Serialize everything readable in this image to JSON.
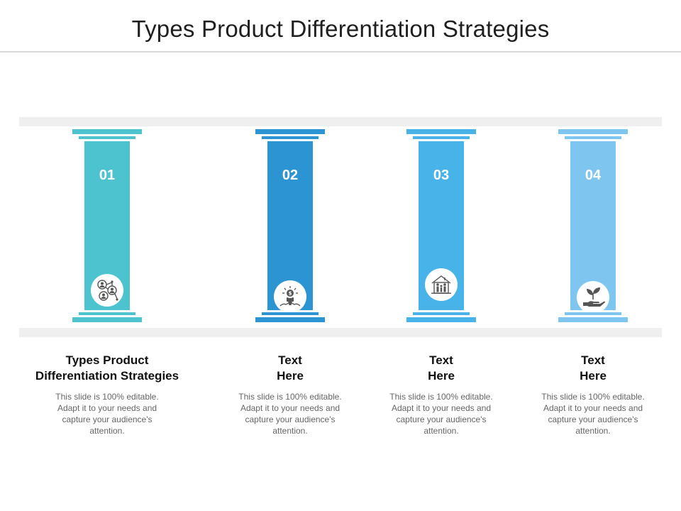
{
  "title": "Types Product Differentiation Strategies",
  "pillars": [
    {
      "number": "01",
      "color": "#4cc3cf",
      "icon": "network-people-icon",
      "heading_line1": "Types Product",
      "heading_line2": "Differentiation Strategies",
      "body": "This slide is 100% editable. Adapt it to your needs and capture your audience's attention."
    },
    {
      "number": "02",
      "color": "#2d94d3",
      "icon": "idea-hand-coin-icon",
      "heading_line1": "Text",
      "heading_line2": "Here",
      "body": "This slide is 100% editable. Adapt it to your needs and capture your audience's attention."
    },
    {
      "number": "03",
      "color": "#48b3e8",
      "icon": "house-family-icon",
      "heading_line1": "Text",
      "heading_line2": "Here",
      "body": "This slide is 100% editable. Adapt it to your needs and capture your audience's attention."
    },
    {
      "number": "04",
      "color": "#7ec6ef",
      "icon": "hand-plant-icon",
      "heading_line1": "Text",
      "heading_line2": "Here",
      "body": "This slide is 100% editable. Adapt it to your needs and capture your audience's attention."
    }
  ]
}
